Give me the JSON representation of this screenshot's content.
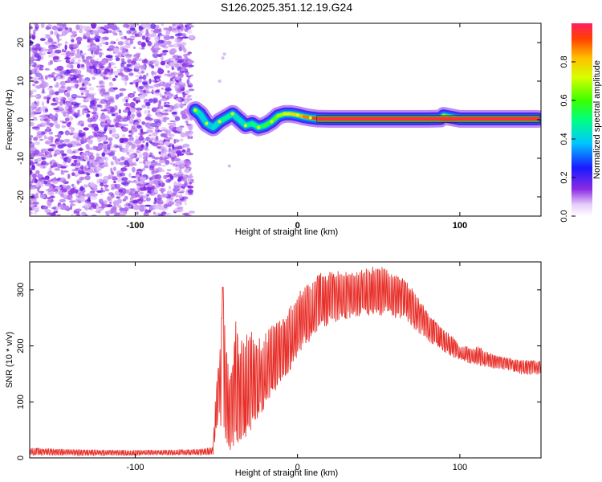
{
  "figure_title": "S126.2025.351.12.19.G24",
  "colors": {
    "snr_line": "#e8302a",
    "track": "#e8334a",
    "noise": "#7a2ee8",
    "frame": "#000000"
  },
  "chart_data": [
    {
      "type": "heatmap",
      "title": "S126.2025.351.12.19.G24",
      "xlabel": "Height of straight line (km)",
      "ylabel": "Frequency (Hz)",
      "xlim": [
        -165,
        150
      ],
      "ylim": [
        -25,
        25
      ],
      "xticks": [
        -100,
        0,
        100
      ],
      "yticks": [
        -20,
        -10,
        0,
        10,
        20
      ],
      "noise_region_x": [
        -165,
        -65
      ],
      "signal_track": {
        "x": [
          -63,
          -60,
          -56,
          -52,
          -48,
          -44,
          -40,
          -36,
          -32,
          -28,
          -24,
          -20,
          -16,
          -12,
          -8,
          -4,
          0,
          4,
          8,
          12,
          20,
          40,
          60,
          80,
          88,
          90,
          100,
          120,
          148
        ],
        "y": [
          2.5,
          1.5,
          -1.0,
          -2.0,
          -0.5,
          0.5,
          1.5,
          0.0,
          -1.5,
          -1.0,
          -2.0,
          -1.5,
          -0.5,
          1.0,
          1.5,
          1.5,
          1.2,
          0.8,
          0.5,
          0.3,
          0.2,
          0.2,
          0.2,
          0.2,
          0.3,
          1.0,
          0.2,
          0.2,
          0.2
        ],
        "amplitude": [
          0.55,
          0.45,
          0.35,
          0.4,
          0.45,
          0.5,
          0.45,
          0.4,
          0.45,
          0.5,
          0.5,
          0.55,
          0.6,
          0.65,
          0.7,
          0.75,
          0.8,
          0.85,
          0.9,
          0.95,
          0.95,
          0.95,
          0.95,
          0.95,
          0.9,
          0.6,
          0.95,
          0.95,
          0.95
        ]
      },
      "colorbar": {
        "label": "Normalized spectral amplitude",
        "range": [
          0,
          1
        ],
        "ticks": [
          "0.0",
          "0.2",
          "0.4",
          "0.6",
          "0.8"
        ],
        "tick_values": [
          0,
          0.2,
          0.4,
          0.6,
          0.8
        ]
      }
    },
    {
      "type": "line",
      "xlabel": "Height of straight line (km)",
      "ylabel": "SNR (10 * v/v)",
      "xlim": [
        -165,
        150
      ],
      "ylim": [
        0,
        350
      ],
      "xticks": [
        -100,
        0,
        100
      ],
      "yticks": [
        0,
        100,
        200,
        300
      ],
      "series": [
        {
          "name": "SNR",
          "envelope_x": [
            -165,
            -150,
            -130,
            -110,
            -90,
            -70,
            -60,
            -52,
            -50,
            -48,
            -46,
            -44,
            -42,
            -40,
            -38,
            -36,
            -34,
            -30,
            -26,
            -22,
            -18,
            -14,
            -10,
            -6,
            -2,
            2,
            6,
            10,
            14,
            18,
            22,
            26,
            30,
            36,
            42,
            48,
            54,
            60,
            66,
            70,
            74,
            78,
            82,
            86,
            90,
            96,
            100,
            104,
            108,
            112,
            116,
            120,
            126,
            132,
            138,
            144,
            150
          ],
          "envelope_low": [
            4,
            4,
            4,
            4,
            5,
            5,
            5,
            6,
            40,
            60,
            50,
            30,
            10,
            15,
            25,
            20,
            30,
            45,
            60,
            75,
            90,
            110,
            130,
            150,
            170,
            190,
            200,
            215,
            225,
            235,
            240,
            245,
            248,
            250,
            252,
            255,
            255,
            250,
            245,
            235,
            225,
            215,
            205,
            200,
            190,
            180,
            175,
            170,
            168,
            165,
            163,
            160,
            158,
            155,
            150,
            148,
            150
          ],
          "envelope_high": [
            18,
            16,
            15,
            14,
            14,
            15,
            16,
            20,
            140,
            180,
            300,
            200,
            160,
            170,
            250,
            200,
            220,
            230,
            220,
            210,
            230,
            240,
            250,
            270,
            280,
            300,
            310,
            320,
            330,
            330,
            335,
            335,
            335,
            338,
            340,
            342,
            340,
            330,
            320,
            305,
            290,
            270,
            255,
            240,
            230,
            215,
            200,
            200,
            195,
            200,
            190,
            185,
            180,
            178,
            175,
            175,
            172
          ],
          "peak_x": -46,
          "peak_value": 305
        }
      ]
    }
  ]
}
